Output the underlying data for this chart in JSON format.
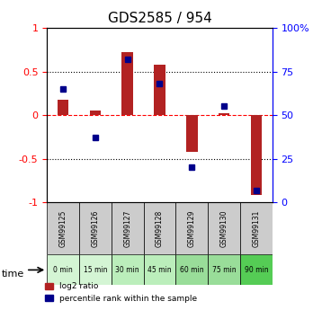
{
  "title": "GDS2585 / 954",
  "samples": [
    "GSM99125",
    "GSM99126",
    "GSM99127",
    "GSM99128",
    "GSM99129",
    "GSM99130",
    "GSM99131"
  ],
  "time_labels": [
    "0 min",
    "15 min",
    "30 min",
    "45 min",
    "60 min",
    "75 min",
    "90 min"
  ],
  "log2_ratio": [
    0.18,
    0.05,
    0.72,
    0.58,
    -0.42,
    0.02,
    -0.92
  ],
  "percentile_rank": [
    65,
    37,
    82,
    68,
    20,
    55,
    7
  ],
  "bar_color": "#b22222",
  "dot_color": "#00008b",
  "bg_color_grey": "#cccccc",
  "time_row_colors": [
    "#d4f5d4",
    "#d4f5d4",
    "#bbeebb",
    "#bbeebb",
    "#99dd99",
    "#99dd99",
    "#55cc55"
  ],
  "ylim": [
    -1,
    1
  ],
  "yticks_left": [
    -1,
    -0.5,
    0,
    0.5,
    1
  ],
  "yticks_right": [
    0,
    25,
    50,
    75,
    100
  ],
  "right_tick_labels": [
    "0",
    "25",
    "50",
    "75",
    "100%"
  ],
  "legend_log2": "log2 ratio",
  "legend_pct": "percentile rank within the sample"
}
